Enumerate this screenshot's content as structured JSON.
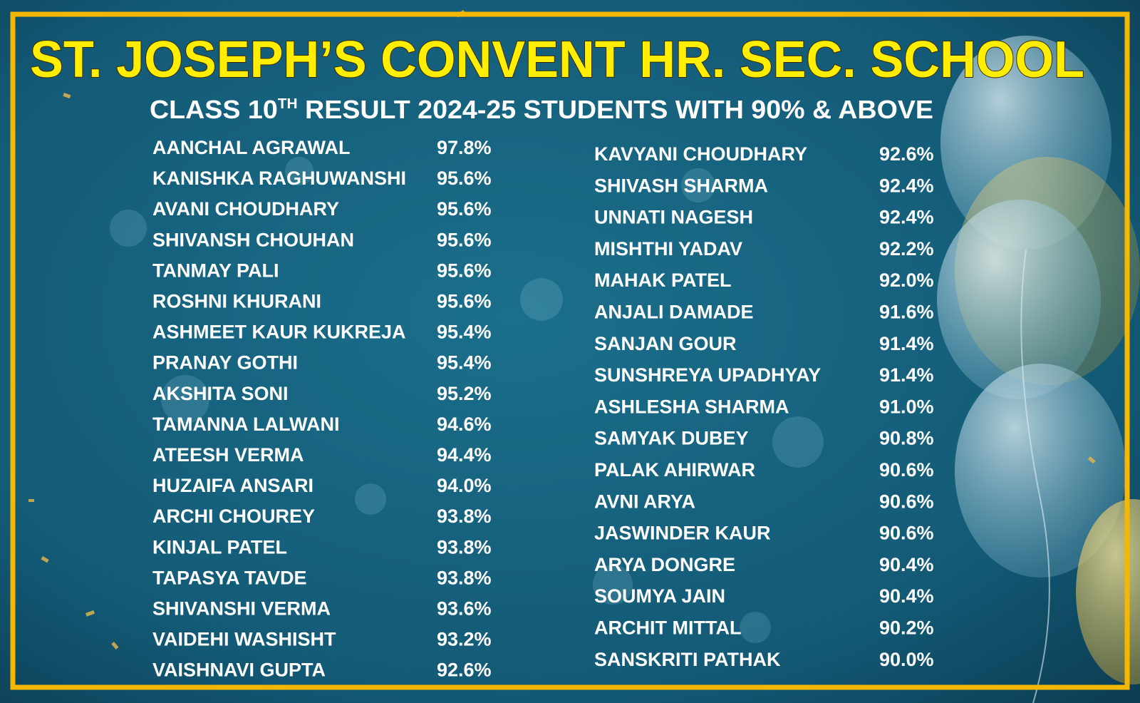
{
  "header": {
    "title": "ST. JOSEPH’S CONVENT HR. SEC. SCHOOL",
    "subtitle": {
      "prefix": "CLASS 10",
      "superscript": "TH",
      "rest": "RESULT 2024-25  STUDENTS WITH 90% & ABOVE"
    }
  },
  "columns": [
    {
      "rows": [
        [
          "AANCHAL AGRAWAL",
          "97.8%"
        ],
        [
          "KANISHKA RAGHUWANSHI",
          "95.6%"
        ],
        [
          "AVANI CHOUDHARY",
          "95.6%"
        ],
        [
          "SHIVANSH CHOUHAN",
          "95.6%"
        ],
        [
          "TANMAY PALI",
          "95.6%"
        ],
        [
          "ROSHNI KHURANI",
          "95.6%"
        ],
        [
          "ASHMEET KAUR KUKREJA",
          "95.4%"
        ],
        [
          "PRANAY GOTHI",
          "95.4%"
        ],
        [
          "AKSHITA SONI",
          "95.2%"
        ],
        [
          "TAMANNA LALWANI",
          "94.6%"
        ],
        [
          "ATEESH VERMA",
          "94.4%"
        ],
        [
          "HUZAIFA ANSARI",
          "94.0%"
        ],
        [
          "ARCHI CHOUREY",
          "93.8%"
        ],
        [
          "KINJAL PATEL",
          "93.8%"
        ],
        [
          "TAPASYA TAVDE",
          "93.8%"
        ],
        [
          "SHIVANSHI VERMA",
          "93.6%"
        ],
        [
          "VAIDEHI WASHISHT",
          "93.2%"
        ],
        [
          "VAISHNAVI GUPTA",
          "92.6%"
        ]
      ]
    },
    {
      "rows": [
        [
          "KAVYANI CHOUDHARY",
          "92.6%"
        ],
        [
          "SHIVASH SHARMA",
          "92.4%"
        ],
        [
          "UNNATI NAGESH",
          "92.4%"
        ],
        [
          "MISHTHI YADAV",
          "92.2%"
        ],
        [
          "MAHAK PATEL",
          "92.0%"
        ],
        [
          "ANJALI DAMADE",
          "91.6%"
        ],
        [
          "SANJAN GOUR",
          "91.4%"
        ],
        [
          "SUNSHREYA UPADHYAY",
          "91.4%"
        ],
        [
          "ASHLESHA SHARMA",
          "91.0%"
        ],
        [
          "SAMYAK DUBEY",
          "90.8%"
        ],
        [
          "PALAK AHIRWAR",
          "90.6%"
        ],
        [
          "AVNI ARYA",
          "90.6%"
        ],
        [
          "JASWINDER KAUR",
          "90.6%"
        ],
        [
          "ARYA DONGRE",
          "90.4%"
        ],
        [
          "SOUMYA JAIN",
          "90.4%"
        ],
        [
          "ARCHIT MITTAL",
          "90.2%"
        ],
        [
          "SANSKRITI PATHAK",
          "90.0%"
        ]
      ]
    }
  ]
}
